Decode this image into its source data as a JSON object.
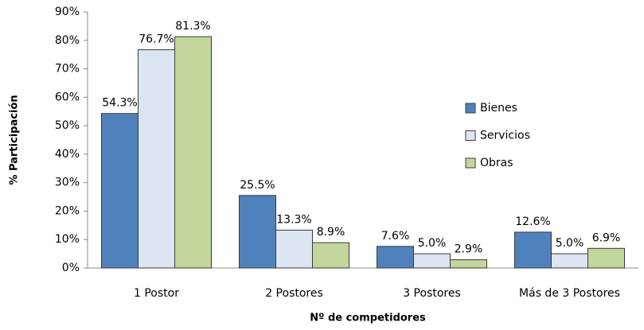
{
  "chart_data": {
    "type": "bar",
    "categories": [
      "1 Postor",
      "2 Postores",
      "3 Postores",
      "Más de 3 Postores"
    ],
    "series": [
      {
        "name": "Bienes",
        "color": "#4f81bd",
        "values": [
          54.3,
          25.5,
          7.6,
          12.6
        ],
        "value_labels": [
          "54.3%",
          "25.5%",
          "7.6%",
          "12.6%"
        ]
      },
      {
        "name": "Servicios",
        "color": "#dce6f2",
        "values": [
          76.7,
          13.3,
          5.0,
          5.0
        ],
        "value_labels": [
          "76.7%",
          "13.3%",
          "5.0%",
          "5.0%"
        ]
      },
      {
        "name": "Obras",
        "color": "#c3d69b",
        "values": [
          81.3,
          8.9,
          2.9,
          6.9
        ],
        "value_labels": [
          "81.3%",
          "8.9%",
          "2.9%",
          "6.9%"
        ]
      }
    ],
    "xlabel": "Nº de competidores",
    "ylabel": "% Participación",
    "ylim": [
      0,
      90
    ],
    "yticks": [
      {
        "value": 0,
        "label": "0%"
      },
      {
        "value": 10,
        "label": "10%"
      },
      {
        "value": 20,
        "label": "20%"
      },
      {
        "value": 30,
        "label": "30%"
      },
      {
        "value": 40,
        "label": "40%"
      },
      {
        "value": 50,
        "label": "50%"
      },
      {
        "value": 60,
        "label": "60%"
      },
      {
        "value": 70,
        "label": "70%"
      },
      {
        "value": 80,
        "label": "80%"
      },
      {
        "value": 90,
        "label": "90%"
      }
    ],
    "grid": false,
    "legend": "right"
  }
}
